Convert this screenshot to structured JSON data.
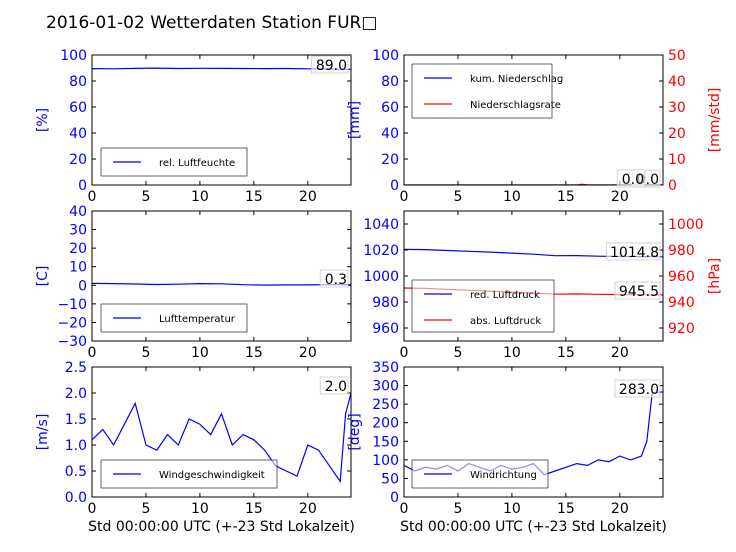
{
  "title": "2016-01-02 Wetterdaten Station FUR□",
  "chart_data": [
    {
      "type": "line",
      "xlim": [
        0,
        24
      ],
      "xticks": [
        "0",
        "5",
        "10",
        "15",
        "20"
      ],
      "ylabel": "[%]",
      "ylim": [
        0,
        100
      ],
      "yticks": [
        "0",
        "20",
        "40",
        "60",
        "80",
        "100"
      ],
      "series": [
        {
          "name": "rel. Luftfeuchte",
          "color": "#0000ff",
          "x": [
            0,
            2,
            4,
            6,
            8,
            10,
            12,
            14,
            16,
            18,
            20,
            22,
            24
          ],
          "values": [
            89.5,
            89.4,
            89.7,
            89.9,
            89.6,
            89.8,
            89.7,
            89.6,
            89.5,
            89.6,
            89.4,
            89.2,
            89.0
          ]
        }
      ],
      "annotations": [
        "89.0"
      ],
      "legend": "lower-left"
    },
    {
      "type": "line",
      "xlim": [
        0,
        24
      ],
      "xticks": [
        "0",
        "5",
        "10",
        "15",
        "20"
      ],
      "ylabel": "[mm]",
      "ylim": [
        0,
        100
      ],
      "yticks": [
        "0",
        "20",
        "40",
        "60",
        "80",
        "100"
      ],
      "ylabel2": "[mm/std]",
      "ylim2": [
        0,
        50
      ],
      "yticks2": [
        "0",
        "10",
        "20",
        "30",
        "40",
        "50"
      ],
      "series": [
        {
          "name": "kum. Niederschlag",
          "color": "#0000ff",
          "axis": "left",
          "x": [
            0,
            4,
            8,
            12,
            16,
            20,
            24
          ],
          "values": [
            0,
            0,
            0,
            0,
            0,
            0,
            0
          ]
        },
        {
          "name": "Niederschlagsrate",
          "color": "#ff0000",
          "axis": "right",
          "x": [
            0,
            4,
            8,
            12,
            16,
            16.5,
            17,
            20,
            24
          ],
          "values": [
            0,
            0,
            0,
            0,
            0,
            0.3,
            0,
            0,
            0
          ]
        }
      ],
      "annotations": [
        "0.0",
        "0.0"
      ],
      "legend": "upper-left"
    },
    {
      "type": "line",
      "xlim": [
        0,
        24
      ],
      "xticks": [
        "0",
        "5",
        "10",
        "15",
        "20"
      ],
      "ylabel": "[C]",
      "ylim": [
        -30,
        40
      ],
      "yticks": [
        "−30",
        "−20",
        "−10",
        "0",
        "10",
        "20",
        "30",
        "40"
      ],
      "series": [
        {
          "name": "Lufttemperatur",
          "color": "#0000ff",
          "x": [
            0,
            2,
            4,
            6,
            8,
            10,
            12,
            14,
            16,
            18,
            20,
            22,
            24
          ],
          "values": [
            1.0,
            0.9,
            0.7,
            0.4,
            0.6,
            0.9,
            0.8,
            0.3,
            0.1,
            0.2,
            0.2,
            0.3,
            0.3
          ]
        }
      ],
      "annotations": [
        "0.3"
      ],
      "legend": "lower-left"
    },
    {
      "type": "line",
      "xlim": [
        0,
        24
      ],
      "xticks": [
        "0",
        "5",
        "10",
        "15",
        "20"
      ],
      "ylim": [
        950,
        1050
      ],
      "yticks": [
        "960",
        "980",
        "1000",
        "1020",
        "1040"
      ],
      "ylabel2": "[hPa]",
      "ylim2": [
        910,
        1010
      ],
      "yticks2": [
        "920",
        "940",
        "960",
        "980",
        "1000"
      ],
      "series": [
        {
          "name": "red. Luftdruck",
          "color": "#0000ff",
          "axis": "left",
          "x": [
            0,
            2,
            4,
            6,
            8,
            10,
            12,
            14,
            16,
            18,
            20,
            22,
            24
          ],
          "values": [
            1020.5,
            1020.3,
            1019.6,
            1019.0,
            1018.4,
            1017.6,
            1016.8,
            1015.6,
            1015.7,
            1015.2,
            1015.0,
            1014.9,
            1014.8
          ]
        },
        {
          "name": "abs. Luftdruck",
          "color": "#ff0000",
          "axis": "right",
          "x": [
            0,
            2,
            4,
            6,
            8,
            10,
            12,
            14,
            16,
            18,
            20,
            22,
            24
          ],
          "values": [
            950.8,
            950.5,
            949.7,
            949.0,
            948.4,
            947.6,
            946.8,
            946.0,
            946.2,
            945.9,
            945.7,
            945.6,
            945.5
          ]
        }
      ],
      "annotations": [
        "1014.8",
        "945.5"
      ],
      "legend": "lower-left"
    },
    {
      "type": "line",
      "xlabel": "Std 00:00:00 UTC (+-23 Std Lokalzeit)",
      "xlim": [
        0,
        24
      ],
      "xticks": [
        "0",
        "5",
        "10",
        "15",
        "20"
      ],
      "ylabel": "[m/s]",
      "ylim": [
        0,
        2.5
      ],
      "yticks": [
        "0.0",
        "0.5",
        "1.0",
        "1.5",
        "2.0",
        "2.5"
      ],
      "series": [
        {
          "name": "Windgeschwindigkeit",
          "color": "#0000ff",
          "x": [
            0,
            1,
            2,
            3,
            4,
            5,
            6,
            7,
            8,
            9,
            10,
            11,
            12,
            13,
            14,
            15,
            16,
            17,
            18,
            19,
            20,
            21,
            22,
            23,
            23.5,
            24
          ],
          "values": [
            1.1,
            1.3,
            1.0,
            1.4,
            1.8,
            1.0,
            0.9,
            1.2,
            1.0,
            1.5,
            1.4,
            1.2,
            1.6,
            1.0,
            1.2,
            1.1,
            0.9,
            0.6,
            0.5,
            0.4,
            1.0,
            0.9,
            0.6,
            0.3,
            1.6,
            2.0
          ]
        }
      ],
      "annotations": [
        "2.0"
      ],
      "legend": "lower-left"
    },
    {
      "type": "line",
      "xlabel": "Std 00:00:00 UTC (+-23 Std Lokalzeit)",
      "xlim": [
        0,
        24
      ],
      "xticks": [
        "0",
        "5",
        "10",
        "15",
        "20"
      ],
      "ylabel": "[deg]",
      "ylim": [
        0,
        350
      ],
      "yticks": [
        "0",
        "50",
        "100",
        "150",
        "200",
        "250",
        "300",
        "350"
      ],
      "series": [
        {
          "name": "Windrichtung",
          "color": "#0000ff",
          "x": [
            0,
            1,
            2,
            3,
            4,
            5,
            6,
            7,
            8,
            9,
            10,
            11,
            12,
            13,
            14,
            15,
            16,
            17,
            18,
            19,
            20,
            21,
            22,
            22.5,
            23,
            24
          ],
          "values": [
            85,
            70,
            80,
            75,
            85,
            70,
            90,
            80,
            70,
            85,
            75,
            80,
            90,
            60,
            70,
            80,
            90,
            85,
            100,
            95,
            110,
            100,
            110,
            150,
            280,
            283
          ]
        }
      ],
      "annotations": [
        "283.0"
      ],
      "legend": "lower-left"
    }
  ]
}
